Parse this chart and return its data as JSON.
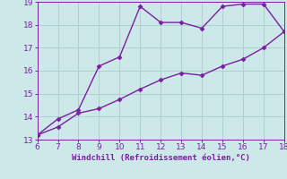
{
  "x": [
    6,
    7,
    8,
    9,
    10,
    11,
    12,
    13,
    14,
    15,
    16,
    17,
    18
  ],
  "y_line1": [
    13.2,
    13.9,
    14.3,
    16.2,
    16.6,
    18.8,
    18.1,
    18.1,
    17.85,
    18.8,
    18.9,
    18.9,
    17.7
  ],
  "y_line2": [
    13.2,
    13.55,
    14.15,
    14.35,
    14.75,
    15.2,
    15.6,
    15.9,
    15.8,
    16.2,
    16.5,
    17.0,
    17.7
  ],
  "line_color": "#7b1fa2",
  "bg_color": "#cce8e8",
  "grid_color": "#b0d0d0",
  "xlabel": "Windchill (Refroidissement éolien,°C)",
  "xlim": [
    6,
    18
  ],
  "ylim": [
    13,
    19
  ],
  "xticks": [
    6,
    7,
    8,
    9,
    10,
    11,
    12,
    13,
    14,
    15,
    16,
    17,
    18
  ],
  "yticks": [
    13,
    14,
    15,
    16,
    17,
    18,
    19
  ],
  "marker": "D",
  "markersize": 2.5,
  "linewidth": 1.0,
  "xlabel_fontsize": 6.5,
  "tick_fontsize": 6.5,
  "tick_color": "#7b1fa2",
  "xlabel_color": "#7b1fa2"
}
